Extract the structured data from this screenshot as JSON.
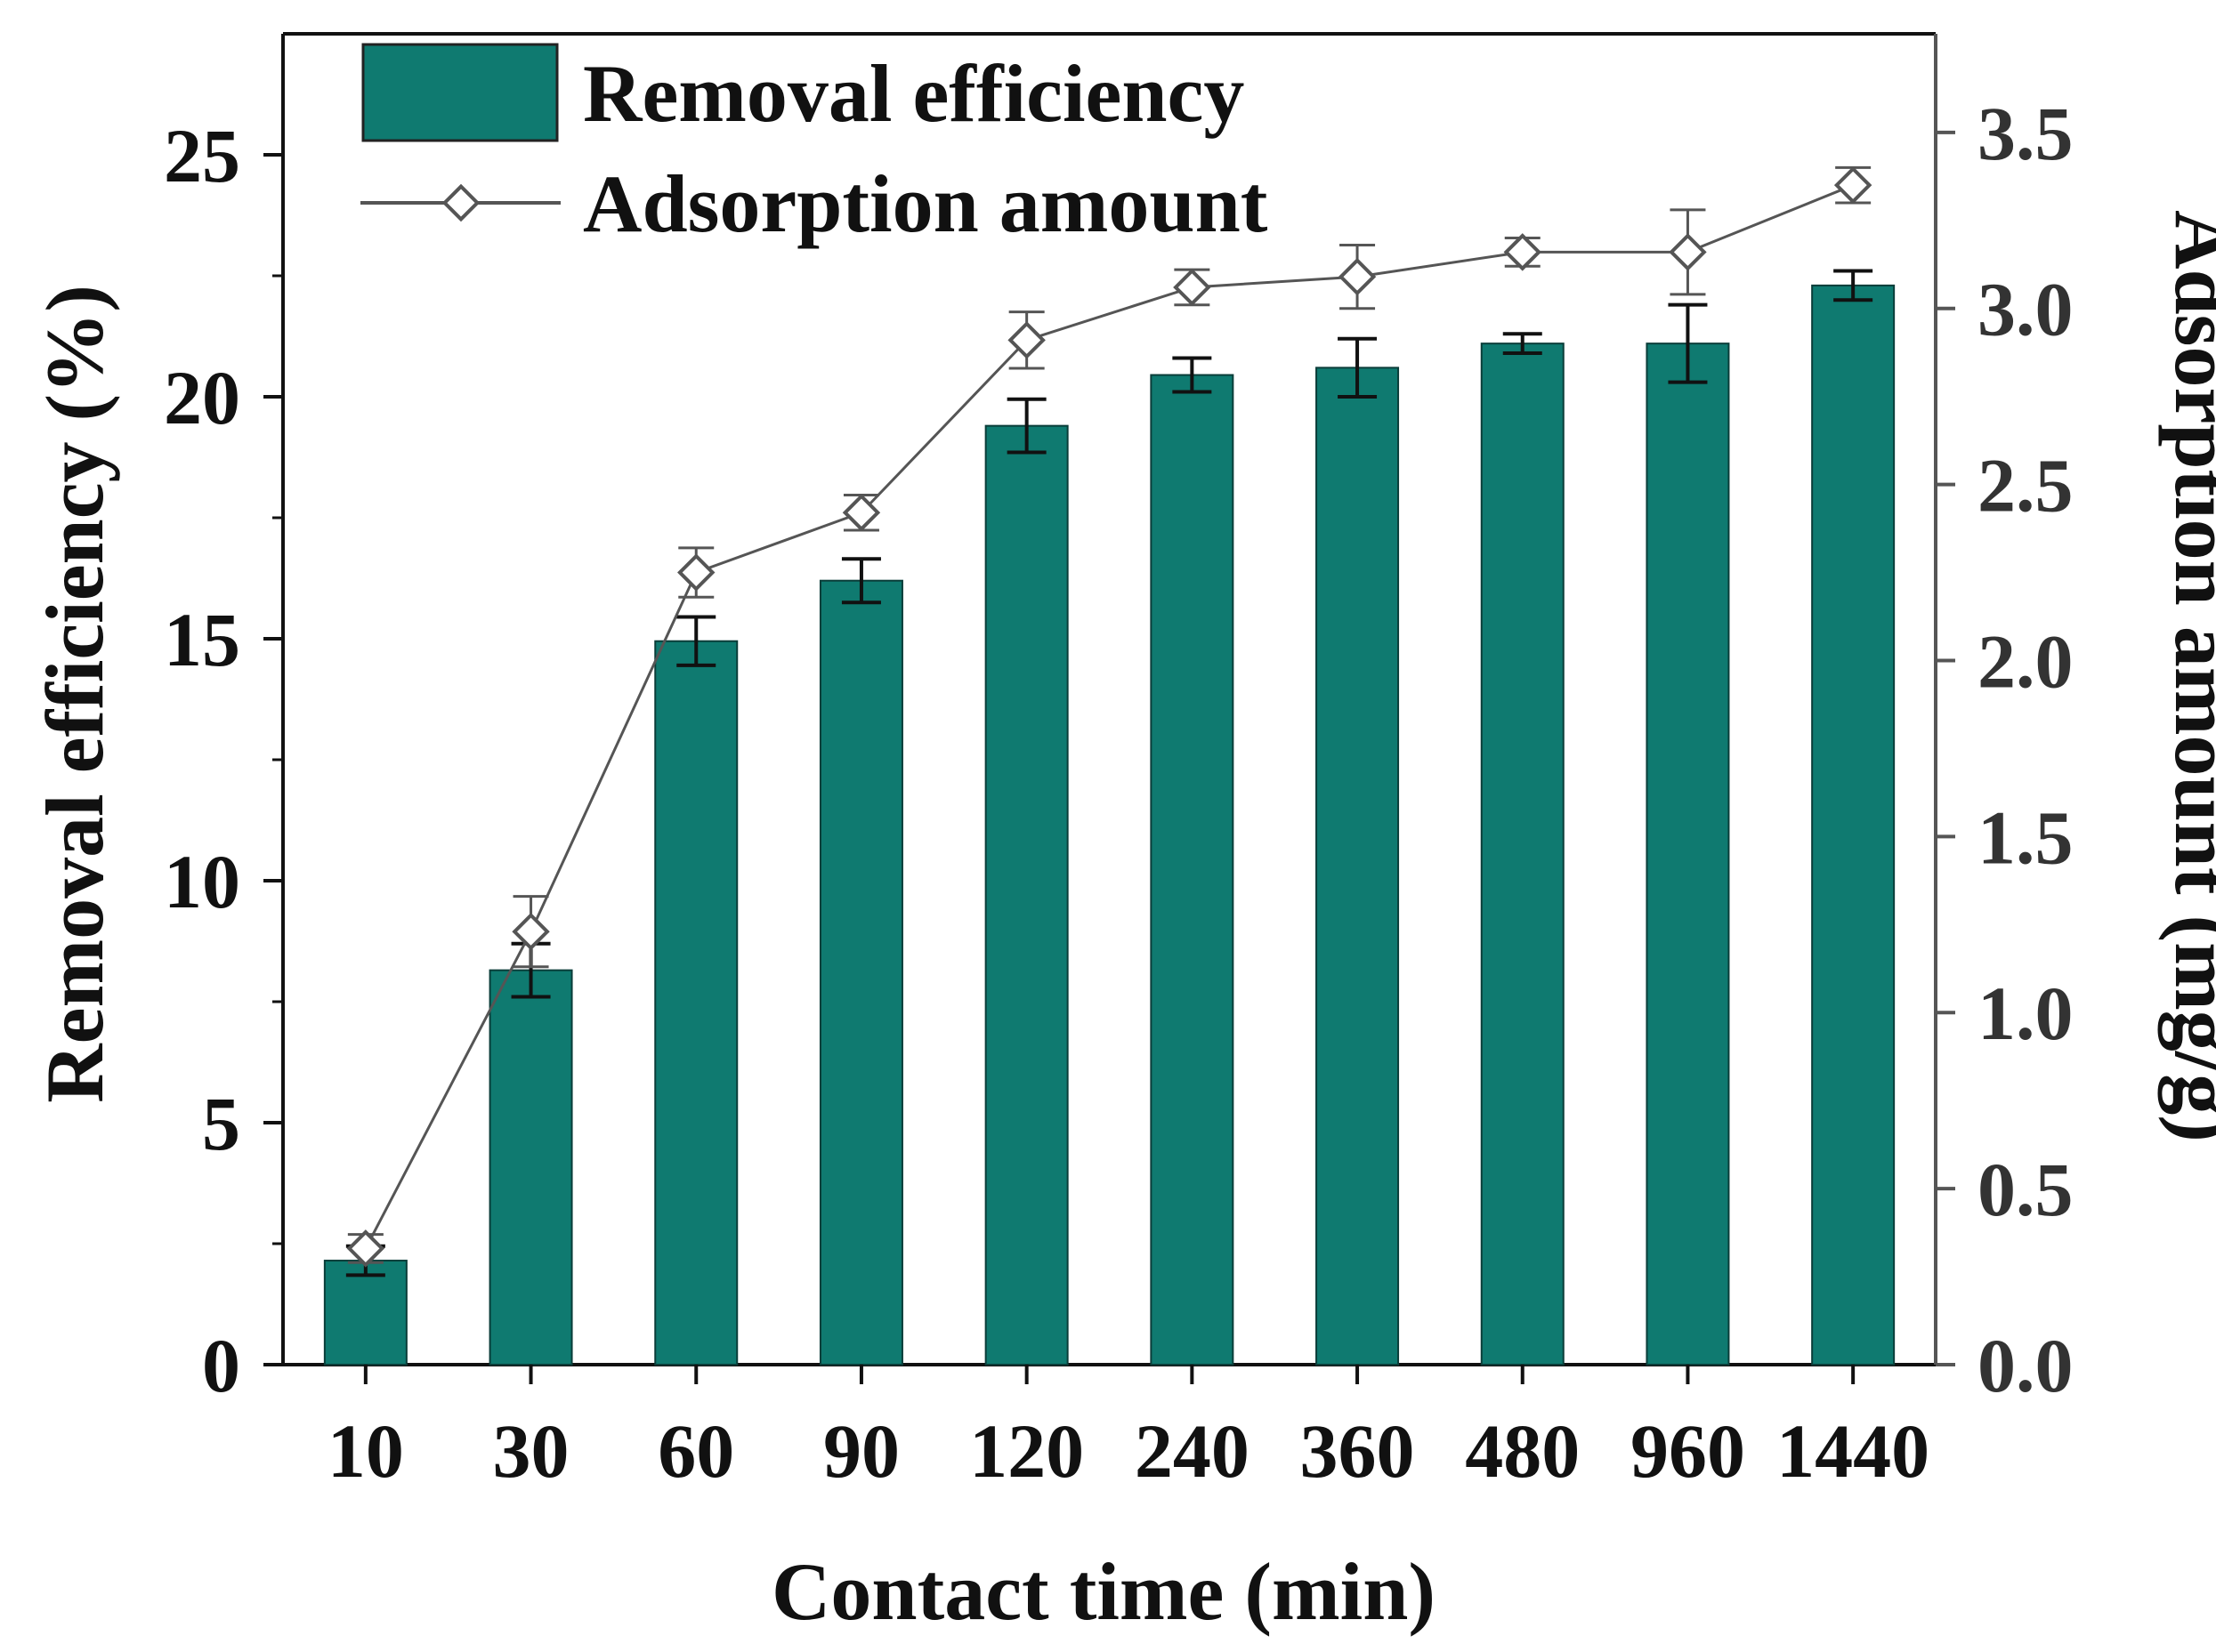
{
  "chart_data": {
    "type": "bar+line",
    "categories": [
      "10",
      "30",
      "60",
      "90",
      "120",
      "240",
      "360",
      "480",
      "960",
      "1440"
    ],
    "xlabel": "Contact time (min)",
    "series": [
      {
        "name": "Removal efficiency",
        "kind": "bar",
        "axis": "left",
        "color": "#0f7a70",
        "values": [
          2.15,
          8.15,
          14.95,
          16.2,
          19.4,
          20.45,
          20.6,
          21.1,
          21.1,
          22.3
        ],
        "errors": [
          0.3,
          0.55,
          0.5,
          0.45,
          0.55,
          0.35,
          0.6,
          0.2,
          0.8,
          0.3
        ]
      },
      {
        "name": "Adsorption amount",
        "kind": "line",
        "axis": "right",
        "color": "#555555",
        "marker": "diamond-open",
        "values": [
          0.33,
          1.23,
          2.25,
          2.42,
          2.91,
          3.06,
          3.09,
          3.16,
          3.16,
          3.35
        ],
        "errors": [
          0.04,
          0.1,
          0.07,
          0.05,
          0.08,
          0.05,
          0.09,
          0.04,
          0.12,
          0.05
        ]
      }
    ],
    "y_left": {
      "label": "Removal efficiency (%)",
      "ylim": [
        0,
        27.5
      ],
      "ticks": [
        "0",
        "5",
        "10",
        "15",
        "20",
        "25"
      ]
    },
    "y_right": {
      "label": "Adsorption amount (mg/g)",
      "ylim": [
        0,
        3.78
      ],
      "ticks": [
        "0.0",
        "0.5",
        "1.0",
        "1.5",
        "2.0",
        "2.5",
        "3.0",
        "3.5"
      ]
    },
    "legend": {
      "placement": "top-left",
      "entries": [
        "Removal efficiency",
        "Adsorption amount"
      ]
    },
    "grid": false
  }
}
